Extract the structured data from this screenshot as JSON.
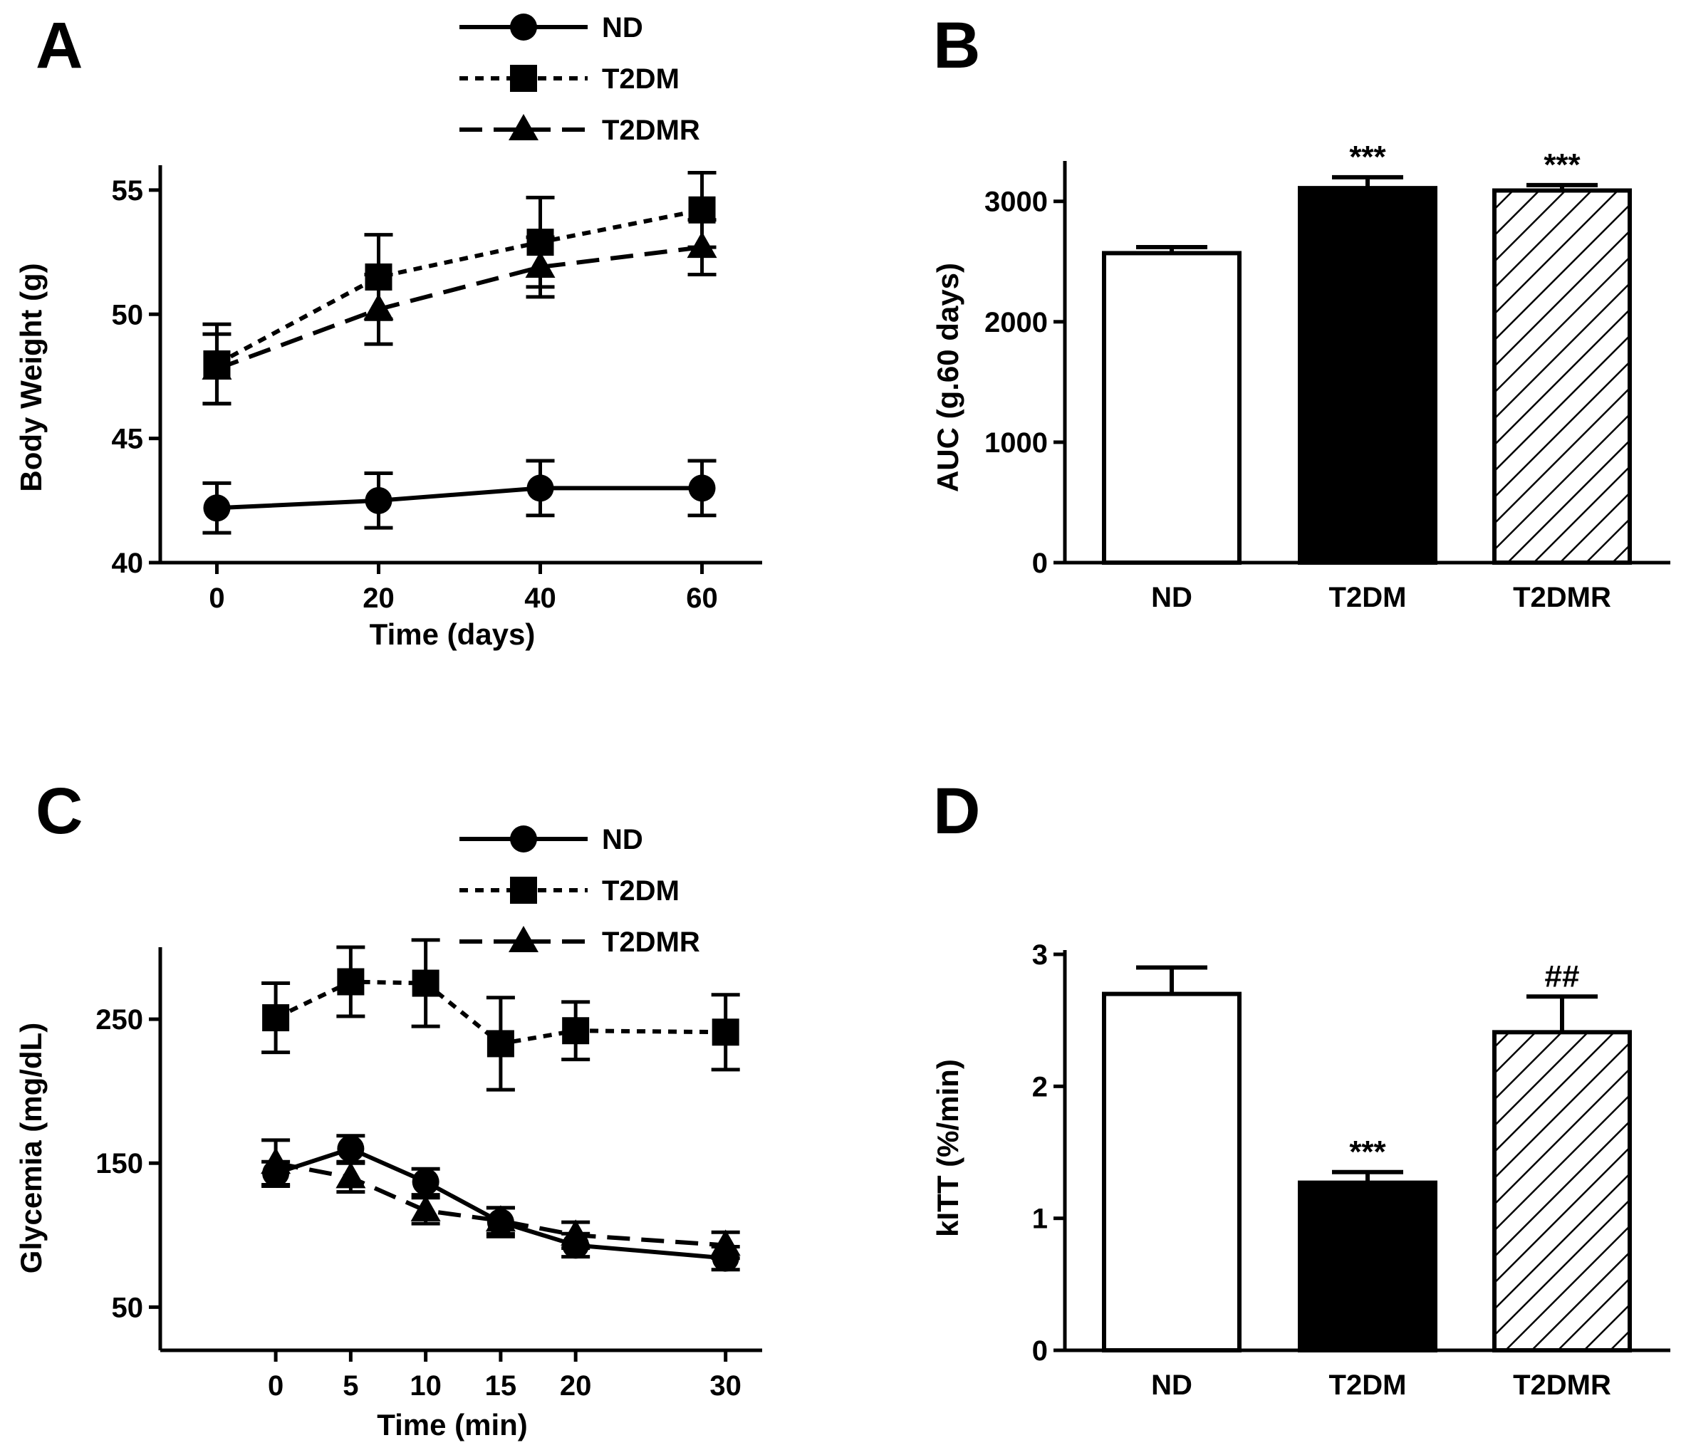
{
  "chart_data": [
    {
      "panel": "A",
      "type": "line",
      "xlabel": "Time (days)",
      "ylabel": "Body Weight (g)",
      "xlim": [
        -7,
        67
      ],
      "ylim": [
        40,
        56
      ],
      "xticks": [
        0,
        20,
        40,
        60
      ],
      "yticks": [
        40,
        45,
        50,
        55
      ],
      "x": [
        0,
        20,
        40,
        60
      ],
      "series": [
        {
          "name": "ND",
          "marker": "circle",
          "dash": "solid",
          "values": [
            42.2,
            42.5,
            43.0,
            43.0
          ],
          "errors": [
            1.0,
            1.1,
            1.1,
            1.1
          ]
        },
        {
          "name": "T2DM",
          "marker": "square",
          "dash": "dotted",
          "values": [
            48.0,
            51.5,
            52.9,
            54.2
          ],
          "errors": [
            1.6,
            1.7,
            1.8,
            1.5
          ]
        },
        {
          "name": "T2DMR",
          "marker": "triangle",
          "dash": "dashed",
          "values": [
            47.8,
            50.2,
            51.9,
            52.7
          ],
          "errors": [
            1.4,
            1.4,
            1.2,
            1.1
          ]
        }
      ]
    },
    {
      "panel": "B",
      "type": "bar",
      "xlabel": "",
      "ylabel": "AUC (g.60 days)",
      "ylim": [
        0,
        3300
      ],
      "yticks": [
        0,
        1000,
        2000,
        3000
      ],
      "categories": [
        "ND",
        "T2DM",
        "T2DMR"
      ],
      "fills": [
        "white",
        "black",
        "hatched"
      ],
      "values": [
        2570,
        3110,
        3090
      ],
      "errors": [
        50,
        90,
        45
      ],
      "annotations": [
        "",
        "***",
        "***"
      ]
    },
    {
      "panel": "C",
      "type": "line",
      "xlabel": "Time (min)",
      "ylabel": "Glycemia (mg/dL)",
      "xlim": [
        -7.7,
        32.2
      ],
      "ylim": [
        20,
        300
      ],
      "xticks": [
        0,
        5,
        10,
        15,
        20,
        30
      ],
      "yticks": [
        50,
        150,
        250
      ],
      "x": [
        0,
        5,
        10,
        15,
        20,
        30
      ],
      "series": [
        {
          "name": "ND",
          "marker": "circle",
          "dash": "solid",
          "values": [
            143,
            160,
            137,
            109,
            93,
            84
          ],
          "errors": [
            8,
            9,
            9,
            10,
            8,
            8
          ]
        },
        {
          "name": "T2DM",
          "marker": "square",
          "dash": "dotted",
          "values": [
            251,
            276,
            275,
            233,
            242,
            241
          ],
          "errors": [
            24,
            24,
            30,
            32,
            20,
            26
          ]
        },
        {
          "name": "T2DMR",
          "marker": "triangle",
          "dash": "dashed",
          "values": [
            150,
            140,
            117,
            110,
            100,
            93
          ],
          "errors": [
            16,
            10,
            9,
            9,
            9,
            9
          ]
        }
      ]
    },
    {
      "panel": "D",
      "type": "bar",
      "xlabel": "",
      "ylabel": "kITT (%/min)",
      "ylim": [
        0,
        3.0
      ],
      "yticks": [
        0,
        1,
        2,
        3
      ],
      "categories": [
        "ND",
        "T2DM",
        "T2DMR"
      ],
      "fills": [
        "white",
        "black",
        "hatched"
      ],
      "values": [
        2.7,
        1.27,
        2.41
      ],
      "errors": [
        0.2,
        0.08,
        0.27
      ],
      "annotations": [
        "",
        "***",
        "##"
      ]
    }
  ]
}
